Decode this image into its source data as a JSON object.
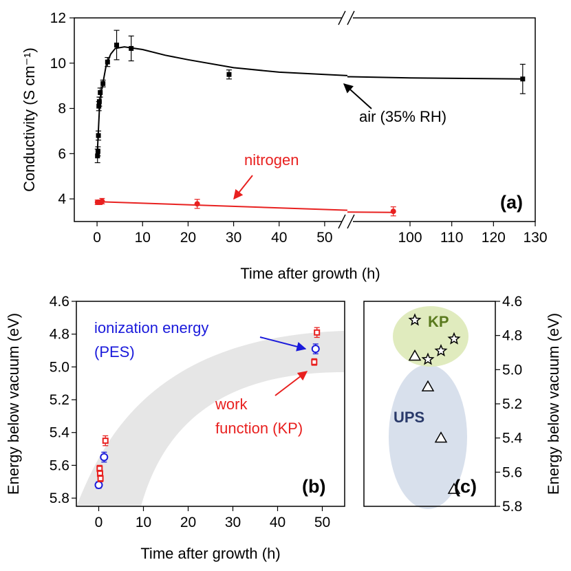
{
  "colors": {
    "air": "#000000",
    "nitrogen": "#e8201f",
    "ionization": "#1a1adb",
    "work_function": "#e8201f",
    "kp_blob": "#dde9b8",
    "kp_label": "#5a7a1e",
    "ups_blob": "#d8e0ec",
    "ups_label": "#2a3a6a",
    "band": "#e6e6e6"
  },
  "chart_data": [
    {
      "panel": "(a)",
      "type": "scatter",
      "xlabel": "Time after growth (h)",
      "ylabel": "Conductivity (S cm⁻¹)",
      "ylim": [
        3,
        12
      ],
      "xlim_segment1": [
        -5,
        55
      ],
      "xlim_segment2": [
        85,
        130
      ],
      "axis_break_between": [
        55,
        85
      ],
      "xticks": [
        0,
        10,
        20,
        30,
        40,
        50,
        100,
        110,
        120,
        130
      ],
      "xtick_labels": [
        "0",
        "10",
        "20",
        "30",
        "40",
        "50",
        "100",
        "110",
        "120",
        "130"
      ],
      "yticks": [
        4,
        6,
        8,
        10,
        12
      ],
      "ytick_labels": [
        "4",
        "6",
        "8",
        "10",
        "12"
      ],
      "series": [
        {
          "name": "air (35% RH)",
          "marker": "square",
          "points": [
            {
              "x": 0.1,
              "y": 5.9,
              "err": 0.3
            },
            {
              "x": 0.2,
              "y": 6.1,
              "err": 0.2
            },
            {
              "x": 0.3,
              "y": 6.8,
              "err": 0.2
            },
            {
              "x": 0.4,
              "y": 8.1,
              "err": 0.2
            },
            {
              "x": 0.5,
              "y": 8.3,
              "err": 0.2
            },
            {
              "x": 0.7,
              "y": 8.7,
              "err": 0.2
            },
            {
              "x": 1.3,
              "y": 9.1,
              "err": 0.15
            },
            {
              "x": 2.3,
              "y": 10.05,
              "err": 0.2
            },
            {
              "x": 4.3,
              "y": 10.8,
              "err": 0.65
            },
            {
              "x": 7.5,
              "y": 10.65,
              "err": 0.55
            },
            {
              "x": 29,
              "y": 9.5,
              "err": 0.2
            },
            {
              "x": 127,
              "y": 9.3,
              "err": 0.65
            }
          ],
          "fit": [
            [
              0,
              5.8
            ],
            [
              0.5,
              7.9
            ],
            [
              1,
              8.8
            ],
            [
              2,
              9.9
            ],
            [
              3,
              10.4
            ],
            [
              4,
              10.65
            ],
            [
              6,
              10.72
            ],
            [
              10,
              10.6
            ],
            [
              15,
              10.35
            ],
            [
              20,
              10.15
            ],
            [
              30,
              9.8
            ],
            [
              40,
              9.6
            ],
            [
              50,
              9.5
            ],
            [
              55,
              9.45
            ],
            [
              85,
              9.4
            ],
            [
              100,
              9.35
            ],
            [
              127,
              9.3
            ]
          ]
        },
        {
          "name": "nitrogen",
          "marker": "circle",
          "points": [
            {
              "x": 0.1,
              "y": 3.85,
              "err": 0.1
            },
            {
              "x": 0.6,
              "y": 3.85,
              "err": 0.1
            },
            {
              "x": 1.1,
              "y": 3.9,
              "err": 0.12
            },
            {
              "x": 22,
              "y": 3.78,
              "err": 0.2
            },
            {
              "x": 96,
              "y": 3.45,
              "err": 0.2
            }
          ],
          "fit": [
            [
              0,
              3.88
            ],
            [
              55,
              3.5
            ],
            [
              85,
              3.42
            ],
            [
              96,
              3.4
            ]
          ]
        }
      ],
      "annotations": [
        "air (35% RH)",
        "nitrogen"
      ]
    },
    {
      "panel": "(b)",
      "type": "scatter",
      "xlabel": "Time after growth (h)",
      "ylabel": "Energy below vacuum (eV)",
      "ylim_inverted": [
        4.6,
        5.85
      ],
      "xlim": [
        -5,
        55
      ],
      "xticks": [
        0,
        10,
        20,
        30,
        40,
        50
      ],
      "xtick_labels": [
        "0",
        "10",
        "20",
        "30",
        "40",
        "50"
      ],
      "yticks": [
        4.6,
        4.8,
        5.0,
        5.2,
        5.4,
        5.6,
        5.8
      ],
      "ytick_labels": [
        "4.6",
        "4.8",
        "5.0",
        "5.2",
        "5.4",
        "5.6",
        "5.8"
      ],
      "series": [
        {
          "name": "ionization energy (PES)",
          "marker": "circle",
          "points": [
            {
              "x": 0,
              "y": 5.72,
              "err": 0.02
            },
            {
              "x": 1.2,
              "y": 5.55,
              "err": 0.03
            },
            {
              "x": 48.5,
              "y": 4.89,
              "err": 0.03
            }
          ]
        },
        {
          "name": "work function (KP)",
          "marker": "square",
          "points": [
            {
              "x": 0.2,
              "y": 5.62,
              "err": 0.02
            },
            {
              "x": 0.3,
              "y": 5.65,
              "err": 0.02
            },
            {
              "x": 0.4,
              "y": 5.68,
              "err": 0.02
            },
            {
              "x": 1.5,
              "y": 5.45,
              "err": 0.03
            },
            {
              "x": 48.2,
              "y": 4.97,
              "err": 0.02
            },
            {
              "x": 48.8,
              "y": 4.79,
              "err": 0.03
            }
          ]
        }
      ],
      "annotations": [
        "ionization energy",
        "(PES)",
        "work",
        "function (KP)"
      ]
    },
    {
      "panel": "(c)",
      "type": "scatter",
      "ylabel": "Energy below vacuum (eV)",
      "ylim_inverted": [
        4.6,
        5.8
      ],
      "yticks": [
        4.6,
        4.8,
        5.0,
        5.2,
        5.4,
        5.6,
        5.8
      ],
      "ytick_labels": [
        "4.6",
        "4.8",
        "5.0",
        "5.2",
        "5.4",
        "5.6",
        "5.8"
      ],
      "series": [
        {
          "name": "KP",
          "marker": "star",
          "points": [
            {
              "i": 0,
              "y": 4.71
            },
            {
              "i": 1,
              "y": 4.94
            },
            {
              "i": 2,
              "y": 4.89
            },
            {
              "i": 3,
              "y": 4.82
            }
          ]
        },
        {
          "name": "UPS",
          "marker": "triangle",
          "points": [
            {
              "i": 0,
              "y": 4.92
            },
            {
              "i": 1,
              "y": 5.1
            },
            {
              "i": 2,
              "y": 5.4
            },
            {
              "i": 3,
              "y": 5.7
            }
          ]
        }
      ],
      "labels": [
        "KP",
        "UPS"
      ]
    }
  ]
}
